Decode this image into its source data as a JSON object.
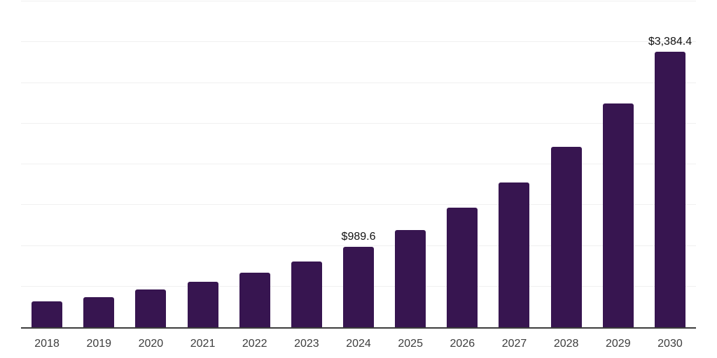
{
  "chart_data": {
    "type": "bar",
    "title": "",
    "xlabel": "",
    "ylabel": "",
    "categories": [
      "2018",
      "2019",
      "2020",
      "2021",
      "2022",
      "2023",
      "2024",
      "2025",
      "2026",
      "2027",
      "2028",
      "2029",
      "2030"
    ],
    "values": [
      315,
      366,
      460,
      561,
      668,
      807,
      989.6,
      1196,
      1466,
      1781,
      2212,
      2743,
      3384.4
    ],
    "value_labels": {
      "2024": "$989.6",
      "2030": "$3,384.4"
    },
    "ylim": [
      0,
      4000
    ],
    "gridline_step": 500,
    "grid": "horizontal-only",
    "legend": "none",
    "colors": {
      "bar": "#371550",
      "gridline": "#f0f0f0",
      "axis_line": "#3c3c3c",
      "value_label_text": "#111111",
      "tick_label_text": "#3d3d3d",
      "background": "#ffffff"
    }
  }
}
